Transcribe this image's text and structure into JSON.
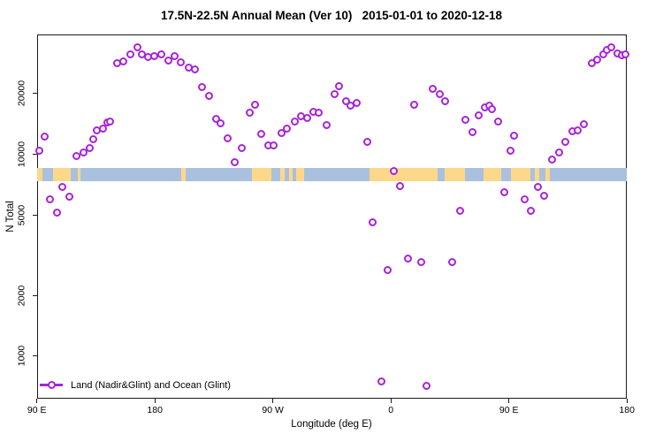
{
  "title": "17.5N-22.5N Annual Mean (Ver 10)   2015-01-01 to 2020-12-18",
  "axes": {
    "x_label": "Longitude (deg E)",
    "y_label": "N Total"
  },
  "legend": {
    "label": "Land (Nadir&Glint) and Ocean (Glint)"
  },
  "colors": {
    "marker": "#a822da",
    "ocean": "#a9c1de",
    "land": "#fdd88b",
    "axis": "#1a1a1a"
  },
  "chart_data": {
    "type": "scatter",
    "title": "17.5N-22.5N Annual Mean (Ver 10)   2015-01-01 to 2020-12-18",
    "xlabel": "Longitude (deg E)",
    "ylabel": "N Total",
    "x_unit": "deg E (wrapping eastward from 90E through 180, 90W, 0, 90E to 180)",
    "xlim": [
      90,
      540
    ],
    "ylim": [
      615,
      39200
    ],
    "y_scale": "log",
    "grid": false,
    "legend_position": "bottom-left inside plot",
    "x_tick_values": [
      90,
      180,
      270,
      360,
      450,
      540
    ],
    "x_tick_labels": [
      "90 E",
      "180",
      "90 W",
      "0",
      "90 E",
      "180"
    ],
    "y_tick_values": [
      1000,
      2000,
      5000,
      10000,
      20000
    ],
    "y_tick_labels": [
      "1000",
      "2000",
      "5000",
      "10000",
      "20000"
    ],
    "series_name": "Land (Nadir&Glint) and Ocean (Glint)",
    "points": [
      [
        91.6,
        10400
      ],
      [
        95.6,
        12200
      ],
      [
        100.3,
        5950
      ],
      [
        105.7,
        5160
      ],
      [
        109.7,
        6850
      ],
      [
        114.5,
        6190
      ],
      [
        119.9,
        9750
      ],
      [
        125.3,
        10150
      ],
      [
        130.0,
        10740
      ],
      [
        132.7,
        11870
      ],
      [
        135.4,
        13060
      ],
      [
        140.1,
        13330
      ],
      [
        143.5,
        14310
      ],
      [
        145.5,
        14450
      ],
      [
        151.5,
        28120
      ],
      [
        156.2,
        28690
      ],
      [
        161.6,
        31100
      ],
      [
        166.4,
        33710
      ],
      [
        170.4,
        31100
      ],
      [
        175.1,
        30170
      ],
      [
        179.8,
        30480
      ],
      [
        184.6,
        31100
      ],
      [
        190.0,
        28980
      ],
      [
        195.3,
        30480
      ],
      [
        200.0,
        28400
      ],
      [
        205.5,
        26730
      ],
      [
        210.8,
        26200
      ],
      [
        216.2,
        21420
      ],
      [
        221.0,
        19360
      ],
      [
        227.0,
        14890
      ],
      [
        230.4,
        14160
      ],
      [
        235.8,
        11930
      ],
      [
        241.2,
        9090
      ],
      [
        246.6,
        10680
      ],
      [
        252.0,
        15980
      ],
      [
        256.7,
        17500
      ],
      [
        261.4,
        12550
      ],
      [
        266.8,
        11010
      ],
      [
        270.8,
        11010
      ],
      [
        276.9,
        12670
      ],
      [
        280.9,
        13330
      ],
      [
        287.0,
        14450
      ],
      [
        291.7,
        15350
      ],
      [
        296.4,
        15040
      ],
      [
        301.1,
        16150
      ],
      [
        305.2,
        15980
      ],
      [
        311.2,
        13880
      ],
      [
        317.3,
        19760
      ],
      [
        320.7,
        21640
      ],
      [
        326.1,
        18220
      ],
      [
        329.4,
        17330
      ],
      [
        334.2,
        17860
      ],
      [
        342.2,
        11570
      ],
      [
        346.3,
        4620
      ],
      [
        353.0,
        745
      ],
      [
        357.7,
        2660
      ],
      [
        362.4,
        8220
      ],
      [
        367.2,
        6920
      ],
      [
        373.2,
        3030
      ],
      [
        377.9,
        17590
      ],
      [
        383.3,
        2910
      ],
      [
        387.4,
        715
      ],
      [
        392.1,
        21000
      ],
      [
        397.5,
        19760
      ],
      [
        401.5,
        18220
      ],
      [
        406.9,
        2930
      ],
      [
        413.0,
        5220
      ],
      [
        417.0,
        14750
      ],
      [
        422.4,
        12800
      ],
      [
        427.1,
        15510
      ],
      [
        431.8,
        16980
      ],
      [
        435.2,
        17330
      ],
      [
        437.2,
        16640
      ],
      [
        441.9,
        14450
      ],
      [
        446.7,
        6450
      ],
      [
        451.4,
        10360
      ],
      [
        454.1,
        12300
      ],
      [
        462.2,
        5950
      ],
      [
        466.9,
        5220
      ],
      [
        472.3,
        6850
      ],
      [
        477.0,
        6220
      ],
      [
        483.1,
        9370
      ],
      [
        488.5,
        10150
      ],
      [
        493.2,
        11520
      ],
      [
        498.6,
        12930
      ],
      [
        502.6,
        13150
      ],
      [
        507.3,
        14020
      ],
      [
        513.4,
        28120
      ],
      [
        517.4,
        29270
      ],
      [
        522.1,
        31100
      ],
      [
        524.8,
        32710
      ],
      [
        528.2,
        33710
      ],
      [
        532.9,
        31420
      ],
      [
        536.2,
        30790
      ],
      [
        538.9,
        31100
      ]
    ],
    "map_band": {
      "description": "horizontal strip across plot showing land/ocean along the 17.5N-22.5N latitude band",
      "n_center": 8000,
      "ocean_color": "#a9c1de",
      "land_color": "#fdd88b",
      "land_segments_lon": [
        [
          90,
          94.2
        ],
        [
          102.5,
          116
        ],
        [
          121,
          123
        ],
        [
          200,
          203.5
        ],
        [
          254,
          269
        ],
        [
          275.5,
          279
        ],
        [
          282,
          285
        ],
        [
          288,
          293.5
        ],
        [
          344,
          395.5
        ],
        [
          401,
          416.5
        ],
        [
          430.5,
          444
        ],
        [
          451.5,
          466.5
        ],
        [
          470,
          473
        ],
        [
          478,
          481
        ]
      ]
    }
  }
}
